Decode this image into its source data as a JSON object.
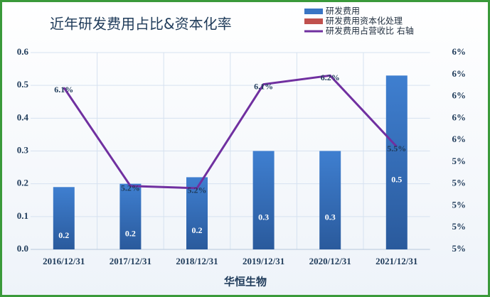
{
  "chart_data": {
    "type": "bar-line",
    "title": "近年研发费用占比&资本化率",
    "x_label": "华恒生物",
    "categories": [
      "2016/12/31",
      "2017/12/31",
      "2018/12/31",
      "2019/12/31",
      "2020/12/31",
      "2021/12/31"
    ],
    "series": [
      {
        "name": "研发费用",
        "type": "bar",
        "color": "#3a75c4",
        "values": [
          0.19,
          0.2,
          0.22,
          0.3,
          0.3,
          0.53
        ],
        "value_labels": [
          "0.2",
          "0.2",
          "0.2",
          "0.3",
          "0.3",
          "0.5"
        ]
      },
      {
        "name": "研发费用资本化处理",
        "type": "bar",
        "color": "#c0504d",
        "values": [
          0,
          0,
          0,
          0,
          0,
          0
        ]
      },
      {
        "name": "研发费用占营收比 右轴",
        "type": "line",
        "axis": "y2",
        "color": "#7030a0",
        "values": [
          6.08,
          5.18,
          5.16,
          6.11,
          6.19,
          5.54
        ],
        "value_labels": [
          "6.1%",
          "5.2%",
          "5.2%",
          "6.1%",
          "6.2%",
          "5.5%"
        ]
      }
    ],
    "ylim": [
      0,
      0.6
    ],
    "yticks": [
      {
        "value": 0,
        "label": "0.0"
      },
      0.1,
      0.2,
      0.3,
      0.4,
      0.5,
      0.6
    ],
    "y2lim": [
      4.6,
      6.4
    ],
    "y2ticks": [
      {
        "value": 4.6,
        "label": "5%"
      },
      {
        "value": 4.8,
        "label": "5%"
      },
      {
        "value": 5.0,
        "label": "5%"
      },
      {
        "value": 5.2,
        "label": "5%"
      },
      {
        "value": 5.4,
        "label": "5%"
      },
      {
        "value": 5.6,
        "label": "6%"
      },
      {
        "value": 5.8,
        "label": "6%"
      },
      {
        "value": 6.0,
        "label": "6%"
      },
      {
        "value": 6.2,
        "label": "6%"
      },
      {
        "value": 6.4,
        "label": "6%"
      }
    ],
    "grid": true
  }
}
